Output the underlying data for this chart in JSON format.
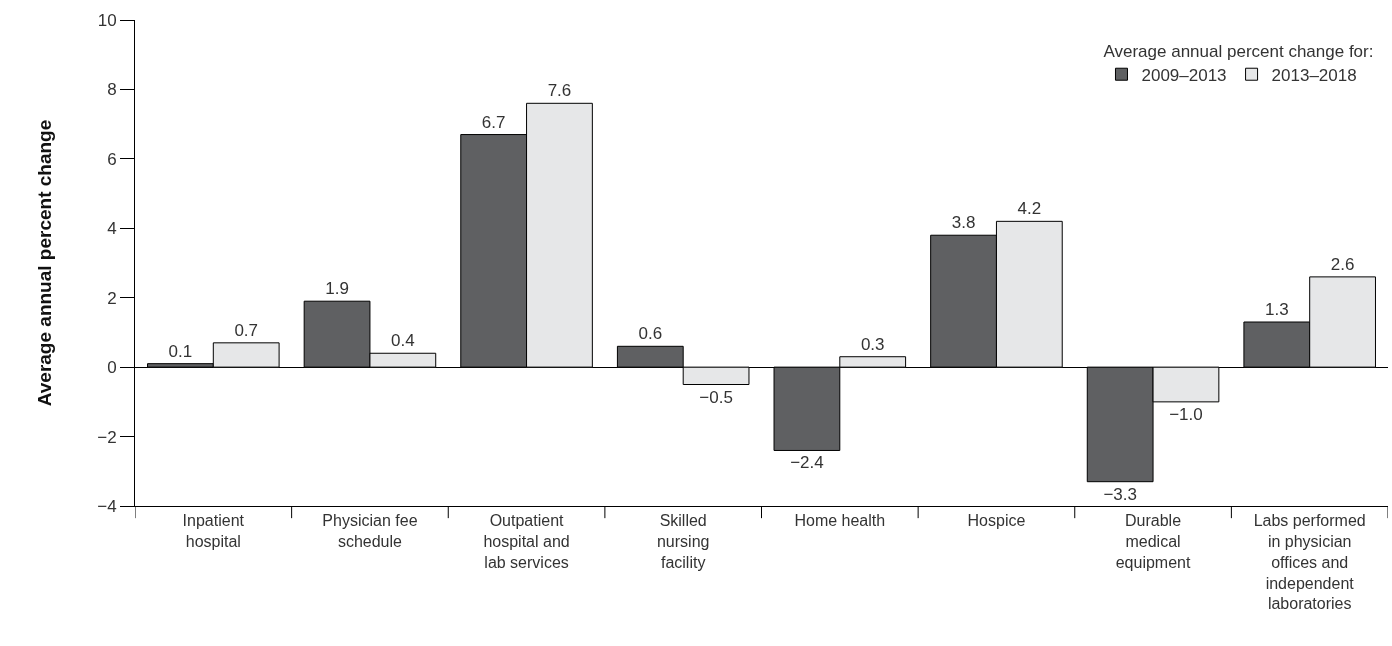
{
  "chart_data": {
    "type": "bar",
    "ylabel": "Average annual percent change",
    "legend_title": "Average annual percent change for:",
    "categories": [
      "Inpatient hospital",
      "Physician fee schedule",
      "Outpatient hospital and lab services",
      "Skilled nursing facility",
      "Home health",
      "Hospice",
      "Durable medical equipment",
      "Labs performed in physician offices and independent laboratories"
    ],
    "series": [
      {
        "name": "2009–2013",
        "color": "#5f6062",
        "values": [
          0.1,
          1.9,
          6.7,
          0.6,
          -2.4,
          3.8,
          -3.3,
          1.3
        ],
        "value_labels": [
          "0.1",
          "1.9",
          "6.7",
          "0.6",
          "−2.4",
          "3.8",
          "−3.3",
          "1.3"
        ]
      },
      {
        "name": "2013–2018",
        "color": "#e6e7e8",
        "values": [
          0.7,
          0.4,
          7.6,
          -0.5,
          0.3,
          4.2,
          -1.0,
          2.6
        ],
        "value_labels": [
          "0.7",
          "0.4",
          "7.6",
          "−0.5",
          "0.3",
          "4.2",
          "−1.0",
          "2.6"
        ]
      }
    ],
    "ylim": [
      -4,
      10
    ],
    "yticks": [
      {
        "value": -4,
        "label": "−4"
      },
      {
        "value": -2,
        "label": "−2"
      },
      0,
      2,
      4,
      6,
      8,
      10
    ],
    "legend": "top right"
  }
}
